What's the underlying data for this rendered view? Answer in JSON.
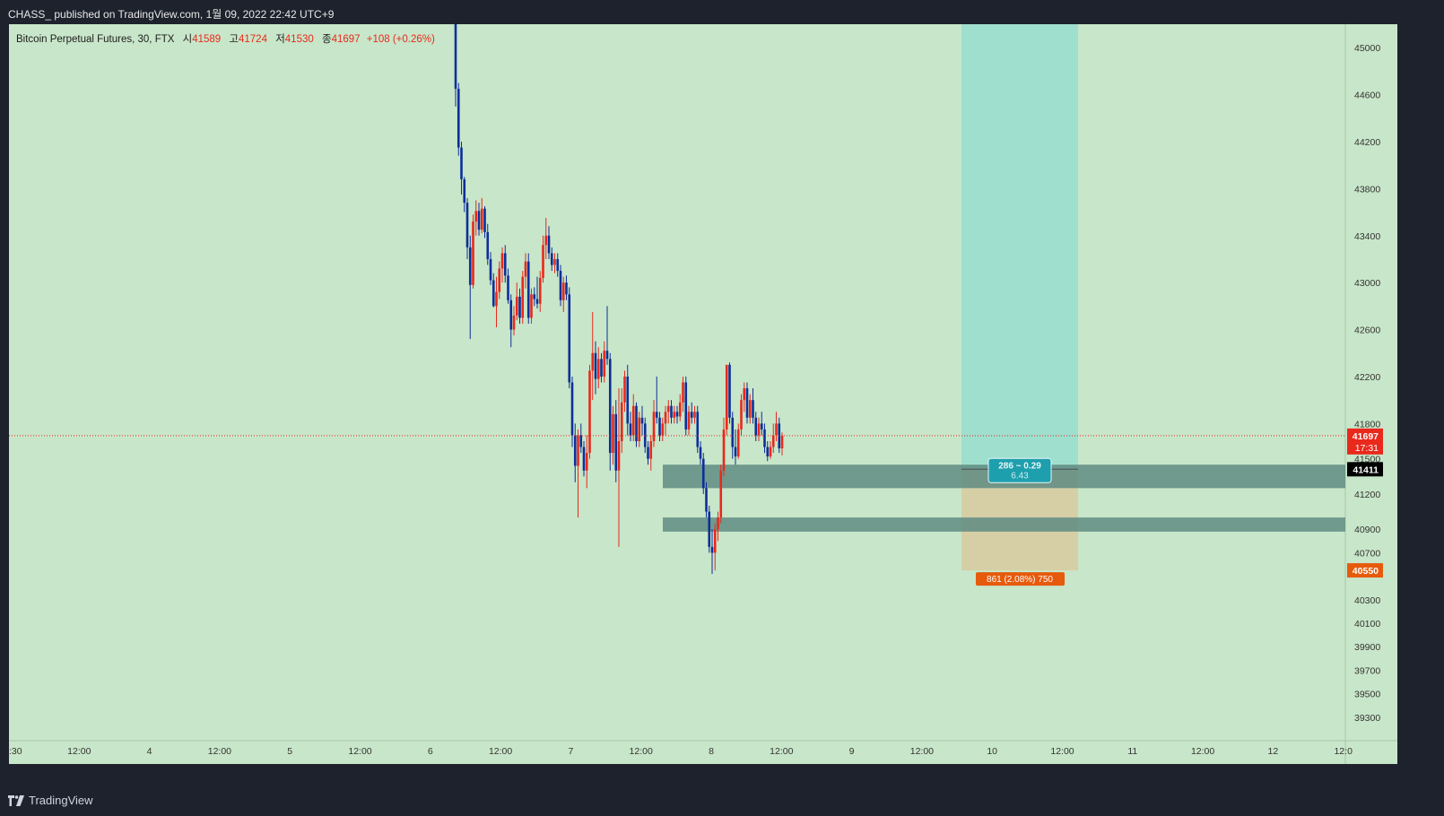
{
  "header": {
    "published_text": "CHASS_ published on TradingView.com, 1월 09, 2022 22:42 UTC+9"
  },
  "footer": {
    "brand": "TradingView",
    "logo_icon": "tradingview-logo-icon"
  },
  "legend": {
    "symbol": "Bitcoin Perpetual Futures, 30, FTX",
    "open_label": "시",
    "open": "41589",
    "high_label": "고",
    "high": "41724",
    "low_label": "저",
    "low": "41530",
    "close_label": "종",
    "close": "41697",
    "change": "+108 (+0.26%)"
  },
  "colors": {
    "background": "#c8e6c9",
    "up": "#e8291c",
    "down": "#0d2f9a",
    "target_zone": "#9fdfce",
    "stop_zone": "#d6cfa5",
    "support_band": "#5f8c82"
  },
  "chart_data": {
    "type": "candlestick",
    "symbol": "Bitcoin Perpetual Futures",
    "interval": "30",
    "exchange": "FTX",
    "ylim": [
      39100,
      45200
    ],
    "y_ticks": [
      45000,
      44600,
      44200,
      43800,
      43400,
      43000,
      42600,
      42200,
      41800,
      41500,
      41200,
      40900,
      40700,
      40300,
      40100,
      39900,
      39700,
      39500,
      39300
    ],
    "x_tick_labels": [
      ":30",
      "12:00",
      "4",
      "12:00",
      "5",
      "12:00",
      "6",
      "12:00",
      "7",
      "12:00",
      "8",
      "12:00",
      "9",
      "12:00",
      "10",
      "12:00",
      "11",
      "12:00",
      "12",
      "12:0"
    ],
    "price_marks": {
      "last_price": "41697",
      "countdown": "17:31",
      "entry": "41411",
      "stop": "40550"
    },
    "last_price_value": 41697,
    "support_bands": [
      {
        "from": 41250,
        "to": 41450
      },
      {
        "from": 40880,
        "to": 41000
      }
    ],
    "long_position": {
      "entry": 41411,
      "target": 45200,
      "stop": 40550,
      "target_label_1": "286 ~ 0.29",
      "target_label_2": "6.43",
      "stop_label": "861 (2.08%) 750"
    },
    "candles": [
      {
        "o": 45200,
        "h": 45200,
        "l": 44500,
        "c": 44650
      },
      {
        "o": 44650,
        "h": 44700,
        "l": 44080,
        "c": 44150
      },
      {
        "o": 44150,
        "h": 44200,
        "l": 43750,
        "c": 43880
      },
      {
        "o": 43880,
        "h": 43900,
        "l": 43600,
        "c": 43680
      },
      {
        "o": 43680,
        "h": 43720,
        "l": 43200,
        "c": 43300
      },
      {
        "o": 43300,
        "h": 43400,
        "l": 42520,
        "c": 42980
      },
      {
        "o": 42980,
        "h": 43580,
        "l": 42950,
        "c": 43520
      },
      {
        "o": 43520,
        "h": 43700,
        "l": 43400,
        "c": 43610
      },
      {
        "o": 43610,
        "h": 43680,
        "l": 43400,
        "c": 43450
      },
      {
        "o": 43450,
        "h": 43720,
        "l": 43420,
        "c": 43630
      },
      {
        "o": 43630,
        "h": 43650,
        "l": 43380,
        "c": 43430
      },
      {
        "o": 43430,
        "h": 43500,
        "l": 43150,
        "c": 43200
      },
      {
        "o": 43200,
        "h": 43260,
        "l": 42980,
        "c": 43020
      },
      {
        "o": 43020,
        "h": 43080,
        "l": 42790,
        "c": 42800
      },
      {
        "o": 42800,
        "h": 43050,
        "l": 42620,
        "c": 42920
      },
      {
        "o": 42920,
        "h": 43180,
        "l": 42860,
        "c": 43120
      },
      {
        "o": 43120,
        "h": 43300,
        "l": 43000,
        "c": 43250
      },
      {
        "o": 43250,
        "h": 43320,
        "l": 43000,
        "c": 43060
      },
      {
        "o": 43060,
        "h": 43120,
        "l": 42820,
        "c": 42850
      },
      {
        "o": 42850,
        "h": 42900,
        "l": 42450,
        "c": 42600
      },
      {
        "o": 42600,
        "h": 42800,
        "l": 42550,
        "c": 42720
      },
      {
        "o": 42720,
        "h": 43000,
        "l": 42680,
        "c": 42880
      },
      {
        "o": 42880,
        "h": 42950,
        "l": 42650,
        "c": 42700
      },
      {
        "o": 42700,
        "h": 43100,
        "l": 42650,
        "c": 43050
      },
      {
        "o": 43050,
        "h": 43250,
        "l": 42950,
        "c": 43180
      },
      {
        "o": 43180,
        "h": 43250,
        "l": 42650,
        "c": 42700
      },
      {
        "o": 42700,
        "h": 42950,
        "l": 42650,
        "c": 42900
      },
      {
        "o": 42900,
        "h": 42960,
        "l": 42800,
        "c": 42860
      },
      {
        "o": 42860,
        "h": 43050,
        "l": 42780,
        "c": 42820
      },
      {
        "o": 42820,
        "h": 43100,
        "l": 42750,
        "c": 43040
      },
      {
        "o": 43040,
        "h": 43400,
        "l": 43000,
        "c": 43320
      },
      {
        "o": 43320,
        "h": 43550,
        "l": 43200,
        "c": 43400
      },
      {
        "o": 43400,
        "h": 43480,
        "l": 43200,
        "c": 43250
      },
      {
        "o": 43250,
        "h": 43300,
        "l": 43100,
        "c": 43150
      },
      {
        "o": 43150,
        "h": 43250,
        "l": 43080,
        "c": 43200
      },
      {
        "o": 43200,
        "h": 43250,
        "l": 43050,
        "c": 43100
      },
      {
        "o": 43100,
        "h": 43150,
        "l": 42800,
        "c": 42850
      },
      {
        "o": 42850,
        "h": 43050,
        "l": 42750,
        "c": 43000
      },
      {
        "o": 43000,
        "h": 43060,
        "l": 42850,
        "c": 42900
      },
      {
        "o": 42900,
        "h": 42960,
        "l": 42100,
        "c": 42150
      },
      {
        "o": 42150,
        "h": 42200,
        "l": 41600,
        "c": 41700
      },
      {
        "o": 41700,
        "h": 41800,
        "l": 41300,
        "c": 41440
      },
      {
        "o": 41440,
        "h": 41750,
        "l": 41000,
        "c": 41700
      },
      {
        "o": 41700,
        "h": 41800,
        "l": 41550,
        "c": 41600
      },
      {
        "o": 41600,
        "h": 41650,
        "l": 41350,
        "c": 41400
      },
      {
        "o": 41400,
        "h": 41700,
        "l": 41250,
        "c": 41550
      },
      {
        "o": 41550,
        "h": 42300,
        "l": 41500,
        "c": 42250
      },
      {
        "o": 42250,
        "h": 42750,
        "l": 42000,
        "c": 42400
      },
      {
        "o": 42400,
        "h": 42500,
        "l": 42050,
        "c": 42180
      },
      {
        "o": 42180,
        "h": 42450,
        "l": 42100,
        "c": 42350
      },
      {
        "o": 42350,
        "h": 42400,
        "l": 42150,
        "c": 42200
      },
      {
        "o": 42200,
        "h": 42500,
        "l": 42150,
        "c": 42420
      },
      {
        "o": 42420,
        "h": 42800,
        "l": 42300,
        "c": 42350
      },
      {
        "o": 42350,
        "h": 42400,
        "l": 41400,
        "c": 41550
      },
      {
        "o": 41550,
        "h": 41950,
        "l": 41450,
        "c": 41880
      },
      {
        "o": 41880,
        "h": 42000,
        "l": 41300,
        "c": 41400
      },
      {
        "o": 41400,
        "h": 42100,
        "l": 40750,
        "c": 41650
      },
      {
        "o": 41650,
        "h": 42100,
        "l": 41550,
        "c": 41980
      },
      {
        "o": 41980,
        "h": 42250,
        "l": 41900,
        "c": 42200
      },
      {
        "o": 42200,
        "h": 42300,
        "l": 41700,
        "c": 41800
      },
      {
        "o": 41800,
        "h": 41900,
        "l": 41650,
        "c": 41700
      },
      {
        "o": 41700,
        "h": 42050,
        "l": 41650,
        "c": 41950
      },
      {
        "o": 41950,
        "h": 41980,
        "l": 41600,
        "c": 41650
      },
      {
        "o": 41650,
        "h": 41900,
        "l": 41600,
        "c": 41850
      },
      {
        "o": 41850,
        "h": 41950,
        "l": 41700,
        "c": 41800
      },
      {
        "o": 41800,
        "h": 41850,
        "l": 41550,
        "c": 41600
      },
      {
        "o": 41600,
        "h": 41650,
        "l": 41450,
        "c": 41500
      },
      {
        "o": 41500,
        "h": 41700,
        "l": 41400,
        "c": 41650
      },
      {
        "o": 41650,
        "h": 42000,
        "l": 41600,
        "c": 41900
      },
      {
        "o": 41900,
        "h": 42200,
        "l": 41800,
        "c": 41850
      },
      {
        "o": 41850,
        "h": 41900,
        "l": 41650,
        "c": 41700
      },
      {
        "o": 41700,
        "h": 41850,
        "l": 41650,
        "c": 41800
      },
      {
        "o": 41800,
        "h": 41950,
        "l": 41700,
        "c": 41900
      },
      {
        "o": 41900,
        "h": 42000,
        "l": 41800,
        "c": 41950
      },
      {
        "o": 41950,
        "h": 42000,
        "l": 41800,
        "c": 41850
      },
      {
        "o": 41850,
        "h": 41950,
        "l": 41800,
        "c": 41900
      },
      {
        "o": 41900,
        "h": 41950,
        "l": 41800,
        "c": 41860
      },
      {
        "o": 41860,
        "h": 42050,
        "l": 41820,
        "c": 41980
      },
      {
        "o": 41980,
        "h": 42200,
        "l": 41900,
        "c": 42150
      },
      {
        "o": 42150,
        "h": 42200,
        "l": 41700,
        "c": 41750
      },
      {
        "o": 41750,
        "h": 41950,
        "l": 41700,
        "c": 41900
      },
      {
        "o": 41900,
        "h": 41980,
        "l": 41800,
        "c": 41850
      },
      {
        "o": 41850,
        "h": 41950,
        "l": 41800,
        "c": 41900
      },
      {
        "o": 41900,
        "h": 41950,
        "l": 41550,
        "c": 41600
      },
      {
        "o": 41600,
        "h": 41650,
        "l": 41450,
        "c": 41500
      },
      {
        "o": 41500,
        "h": 41550,
        "l": 41200,
        "c": 41250
      },
      {
        "o": 41250,
        "h": 41300,
        "l": 41000,
        "c": 41050
      },
      {
        "o": 41050,
        "h": 41100,
        "l": 40700,
        "c": 40750
      },
      {
        "o": 40750,
        "h": 40900,
        "l": 40520,
        "c": 40700
      },
      {
        "o": 40700,
        "h": 40950,
        "l": 40550,
        "c": 40900
      },
      {
        "o": 40900,
        "h": 41050,
        "l": 40800,
        "c": 41000
      },
      {
        "o": 41000,
        "h": 41450,
        "l": 40950,
        "c": 41400
      },
      {
        "o": 41400,
        "h": 41850,
        "l": 41350,
        "c": 41750
      },
      {
        "o": 41750,
        "h": 42300,
        "l": 41700,
        "c": 42300
      },
      {
        "o": 42300,
        "h": 42320,
        "l": 41800,
        "c": 41850
      },
      {
        "o": 41850,
        "h": 41900,
        "l": 41500,
        "c": 41600
      },
      {
        "o": 41600,
        "h": 41750,
        "l": 41450,
        "c": 41520
      },
      {
        "o": 41520,
        "h": 41800,
        "l": 41500,
        "c": 41750
      },
      {
        "o": 41750,
        "h": 42050,
        "l": 41700,
        "c": 42000
      },
      {
        "o": 42000,
        "h": 42150,
        "l": 41900,
        "c": 42100
      },
      {
        "o": 42100,
        "h": 42150,
        "l": 41800,
        "c": 41850
      },
      {
        "o": 41850,
        "h": 42050,
        "l": 41800,
        "c": 42000
      },
      {
        "o": 42000,
        "h": 42100,
        "l": 41800,
        "c": 41850
      },
      {
        "o": 41850,
        "h": 41900,
        "l": 41650,
        "c": 41700
      },
      {
        "o": 41700,
        "h": 41850,
        "l": 41650,
        "c": 41800
      },
      {
        "o": 41800,
        "h": 41900,
        "l": 41700,
        "c": 41750
      },
      {
        "o": 41750,
        "h": 41800,
        "l": 41550,
        "c": 41600
      },
      {
        "o": 41600,
        "h": 41650,
        "l": 41480,
        "c": 41520
      },
      {
        "o": 41520,
        "h": 41650,
        "l": 41500,
        "c": 41600
      },
      {
        "o": 41600,
        "h": 41800,
        "l": 41550,
        "c": 41700
      },
      {
        "o": 41700,
        "h": 41900,
        "l": 41650,
        "c": 41800
      },
      {
        "o": 41800,
        "h": 41850,
        "l": 41550,
        "c": 41589
      },
      {
        "o": 41589,
        "h": 41724,
        "l": 41530,
        "c": 41697
      }
    ]
  }
}
